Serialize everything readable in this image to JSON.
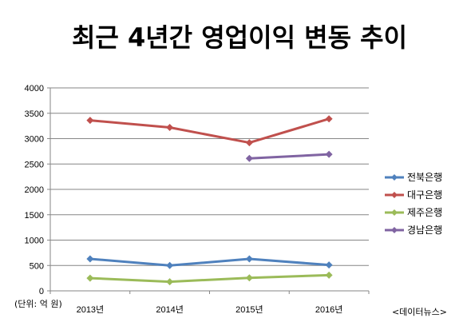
{
  "chart_data": {
    "type": "line",
    "title": "최근 4년간 영업이익 변동 추이",
    "categories": [
      "2013년",
      "2014년",
      "2015년",
      "2016년"
    ],
    "ylim": [
      0,
      4000
    ],
    "yticks": [
      0,
      500,
      1000,
      1500,
      2000,
      2500,
      3000,
      3500,
      4000
    ],
    "unit_note": "(단위: 억 원)",
    "source": "<데이터뉴스>",
    "grid": true,
    "legend_position": "right",
    "series": [
      {
        "name": "전북은행",
        "color": "#4f81bd",
        "values": [
          630,
          500,
          630,
          510
        ]
      },
      {
        "name": "대구은행",
        "color": "#c0504d",
        "values": [
          3360,
          3220,
          2920,
          3390
        ]
      },
      {
        "name": "제주은행",
        "color": "#9bbb59",
        "values": [
          250,
          180,
          255,
          310
        ]
      },
      {
        "name": "경남은행",
        "color": "#8064a2",
        "values": [
          null,
          null,
          2610,
          2690
        ]
      }
    ]
  }
}
